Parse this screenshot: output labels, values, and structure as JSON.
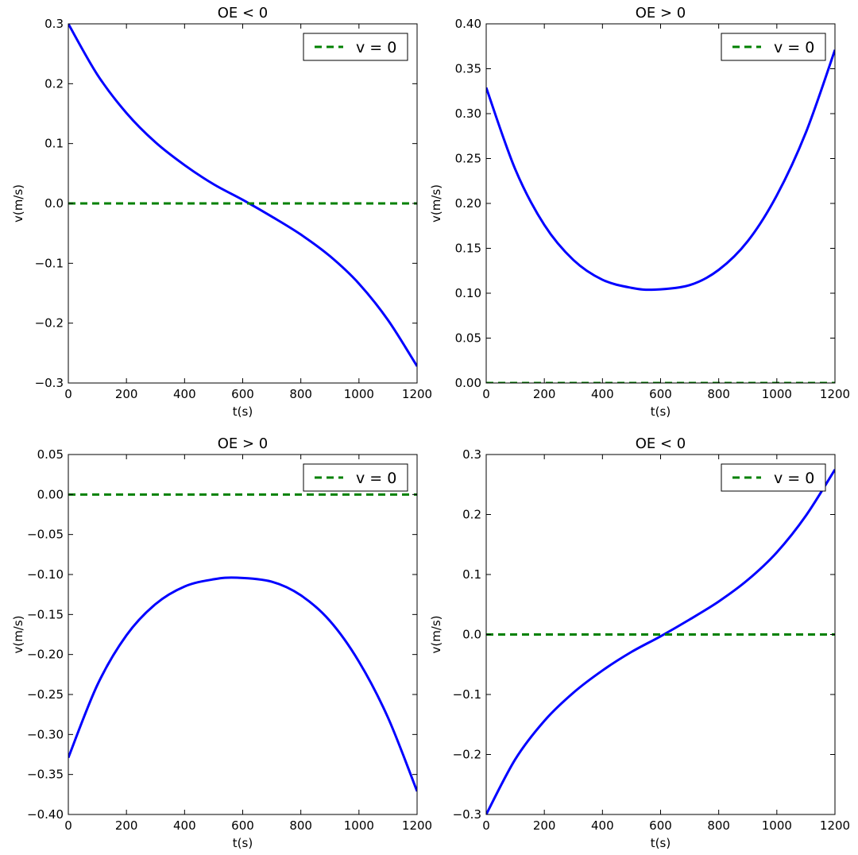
{
  "colors": {
    "curve": "#0000ff",
    "reference": "#008000"
  },
  "chart_data": [
    {
      "type": "line",
      "title": "OE < 0",
      "xlabel": "t(s)",
      "ylabel": "v(m/s)",
      "xlim": [
        0,
        1200
      ],
      "ylim": [
        -0.3,
        0.3
      ],
      "xticks": [
        0,
        200,
        400,
        600,
        800,
        1000,
        1200
      ],
      "yticks": [
        -0.3,
        -0.2,
        -0.1,
        0.0,
        0.1,
        0.2,
        0.3
      ],
      "xtick_labels": [
        "0",
        "200",
        "400",
        "600",
        "800",
        "1000",
        "1200"
      ],
      "ytick_labels": [
        "−0.3",
        "−0.2",
        "−0.1",
        "0.0",
        "0.1",
        "0.2",
        "0.3"
      ],
      "legend_position": "top-right",
      "grid": false,
      "series": [
        {
          "style": "solid",
          "color": "#0000ff",
          "x": [
            0,
            100,
            200,
            300,
            400,
            500,
            600,
            700,
            800,
            900,
            1000,
            1100,
            1200
          ],
          "y": [
            0.3,
            0.215,
            0.151,
            0.102,
            0.064,
            0.032,
            0.006,
            -0.022,
            -0.052,
            -0.088,
            -0.134,
            -0.195,
            -0.272
          ]
        },
        {
          "name": "v = 0",
          "style": "dashed",
          "color": "#008000",
          "x": [
            0,
            1200
          ],
          "y": [
            0,
            0
          ]
        }
      ]
    },
    {
      "type": "line",
      "title": "OE > 0",
      "xlabel": "t(s)",
      "ylabel": "v(m/s)",
      "xlim": [
        0,
        1200
      ],
      "ylim": [
        0.0,
        0.4
      ],
      "xticks": [
        0,
        200,
        400,
        600,
        800,
        1000,
        1200
      ],
      "yticks": [
        0.0,
        0.05,
        0.1,
        0.15,
        0.2,
        0.25,
        0.3,
        0.35,
        0.4
      ],
      "xtick_labels": [
        "0",
        "200",
        "400",
        "600",
        "800",
        "1000",
        "1200"
      ],
      "ytick_labels": [
        "0.00",
        "0.05",
        "0.10",
        "0.15",
        "0.20",
        "0.25",
        "0.30",
        "0.35",
        "0.40"
      ],
      "legend_position": "top-right",
      "grid": false,
      "series": [
        {
          "style": "solid",
          "color": "#0000ff",
          "x": [
            0,
            100,
            200,
            300,
            400,
            500,
            580,
            700,
            800,
            900,
            1000,
            1100,
            1200
          ],
          "y": [
            0.329,
            0.238,
            0.176,
            0.137,
            0.115,
            0.106,
            0.104,
            0.109,
            0.126,
            0.158,
            0.209,
            0.279,
            0.371
          ]
        },
        {
          "name": "v = 0",
          "style": "dashed",
          "color": "#008000",
          "x": [
            0,
            1200
          ],
          "y": [
            0,
            0
          ]
        }
      ]
    },
    {
      "type": "line",
      "title": "OE > 0",
      "xlabel": "t(s)",
      "ylabel": "v(m/s)",
      "xlim": [
        0,
        1200
      ],
      "ylim": [
        -0.4,
        0.05
      ],
      "xticks": [
        0,
        200,
        400,
        600,
        800,
        1000,
        1200
      ],
      "yticks": [
        -0.4,
        -0.35,
        -0.3,
        -0.25,
        -0.2,
        -0.15,
        -0.1,
        -0.05,
        0.0,
        0.05
      ],
      "xtick_labels": [
        "0",
        "200",
        "400",
        "600",
        "800",
        "1000",
        "1200"
      ],
      "ytick_labels": [
        "−0.40",
        "−0.35",
        "−0.30",
        "−0.25",
        "−0.20",
        "−0.15",
        "−0.10",
        "−0.05",
        "0.00",
        "0.05"
      ],
      "legend_position": "top-right",
      "grid": false,
      "series": [
        {
          "style": "solid",
          "color": "#0000ff",
          "x": [
            0,
            100,
            200,
            300,
            400,
            500,
            580,
            700,
            800,
            900,
            1000,
            1100,
            1200
          ],
          "y": [
            -0.329,
            -0.238,
            -0.176,
            -0.137,
            -0.115,
            -0.106,
            -0.104,
            -0.109,
            -0.126,
            -0.158,
            -0.209,
            -0.279,
            -0.371
          ]
        },
        {
          "name": "v = 0",
          "style": "dashed",
          "color": "#008000",
          "x": [
            0,
            1200
          ],
          "y": [
            0,
            0
          ]
        }
      ]
    },
    {
      "type": "line",
      "title": "OE < 0",
      "xlabel": "t(s)",
      "ylabel": "v(m/s)",
      "xlim": [
        0,
        1200
      ],
      "ylim": [
        -0.3,
        0.3
      ],
      "xticks": [
        0,
        200,
        400,
        600,
        800,
        1000,
        1200
      ],
      "yticks": [
        -0.3,
        -0.2,
        -0.1,
        0.0,
        0.1,
        0.2,
        0.3
      ],
      "xtick_labels": [
        "0",
        "200",
        "400",
        "600",
        "800",
        "1000",
        "1200"
      ],
      "ytick_labels": [
        "−0.3",
        "−0.2",
        "−0.1",
        "0.0",
        "0.1",
        "0.2",
        "0.3"
      ],
      "legend_position": "top-right",
      "grid": false,
      "series": [
        {
          "style": "solid",
          "color": "#0000ff",
          "x": [
            0,
            100,
            200,
            300,
            400,
            500,
            600,
            700,
            800,
            900,
            1000,
            1100,
            1200
          ],
          "y": [
            -0.3,
            -0.208,
            -0.144,
            -0.097,
            -0.06,
            -0.029,
            -0.003,
            0.025,
            0.055,
            0.091,
            0.137,
            0.198,
            0.275
          ]
        },
        {
          "name": "v = 0",
          "style": "dashed",
          "color": "#008000",
          "x": [
            0,
            1200
          ],
          "y": [
            0,
            0
          ]
        }
      ]
    }
  ]
}
